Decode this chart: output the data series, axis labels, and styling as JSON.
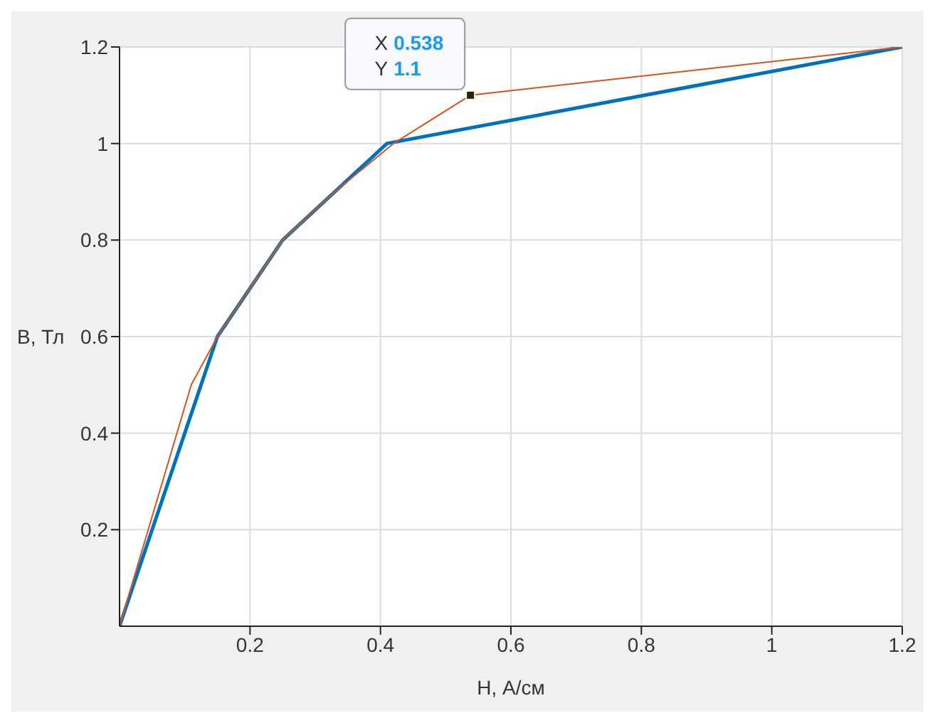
{
  "chart_data": {
    "type": "line",
    "xlabel": "H, А/см",
    "ylabel": "B, Тл",
    "xlim": [
      0,
      1.2
    ],
    "ylim": [
      0,
      1.2
    ],
    "xticks": [
      0.2,
      0.4,
      0.6,
      0.8,
      1,
      1.2
    ],
    "yticks": [
      0.2,
      0.4,
      0.6,
      0.8,
      1,
      1.2
    ],
    "grid": true,
    "marker": "none",
    "line_style": "solid",
    "series": [
      {
        "color": "#0072bd",
        "x": [
          0,
          0.1,
          0.15,
          0.25,
          0.41,
          1.2
        ],
        "values": [
          0,
          0.4,
          0.6,
          0.8,
          1,
          1.2
        ]
      },
      {
        "color": "#d95319",
        "x": [
          0,
          0.11,
          0.15,
          0.2,
          0.25,
          0.33,
          0.42,
          0.538,
          1.2
        ],
        "values": [
          0,
          0.5,
          0.6,
          0.7,
          0.8,
          0.9,
          1,
          1.1,
          1.2
        ]
      }
    ],
    "annotations": [
      {
        "text": "X 0.538\nY 1.1",
        "x": 0.538,
        "y": 1.1
      }
    ]
  }
}
